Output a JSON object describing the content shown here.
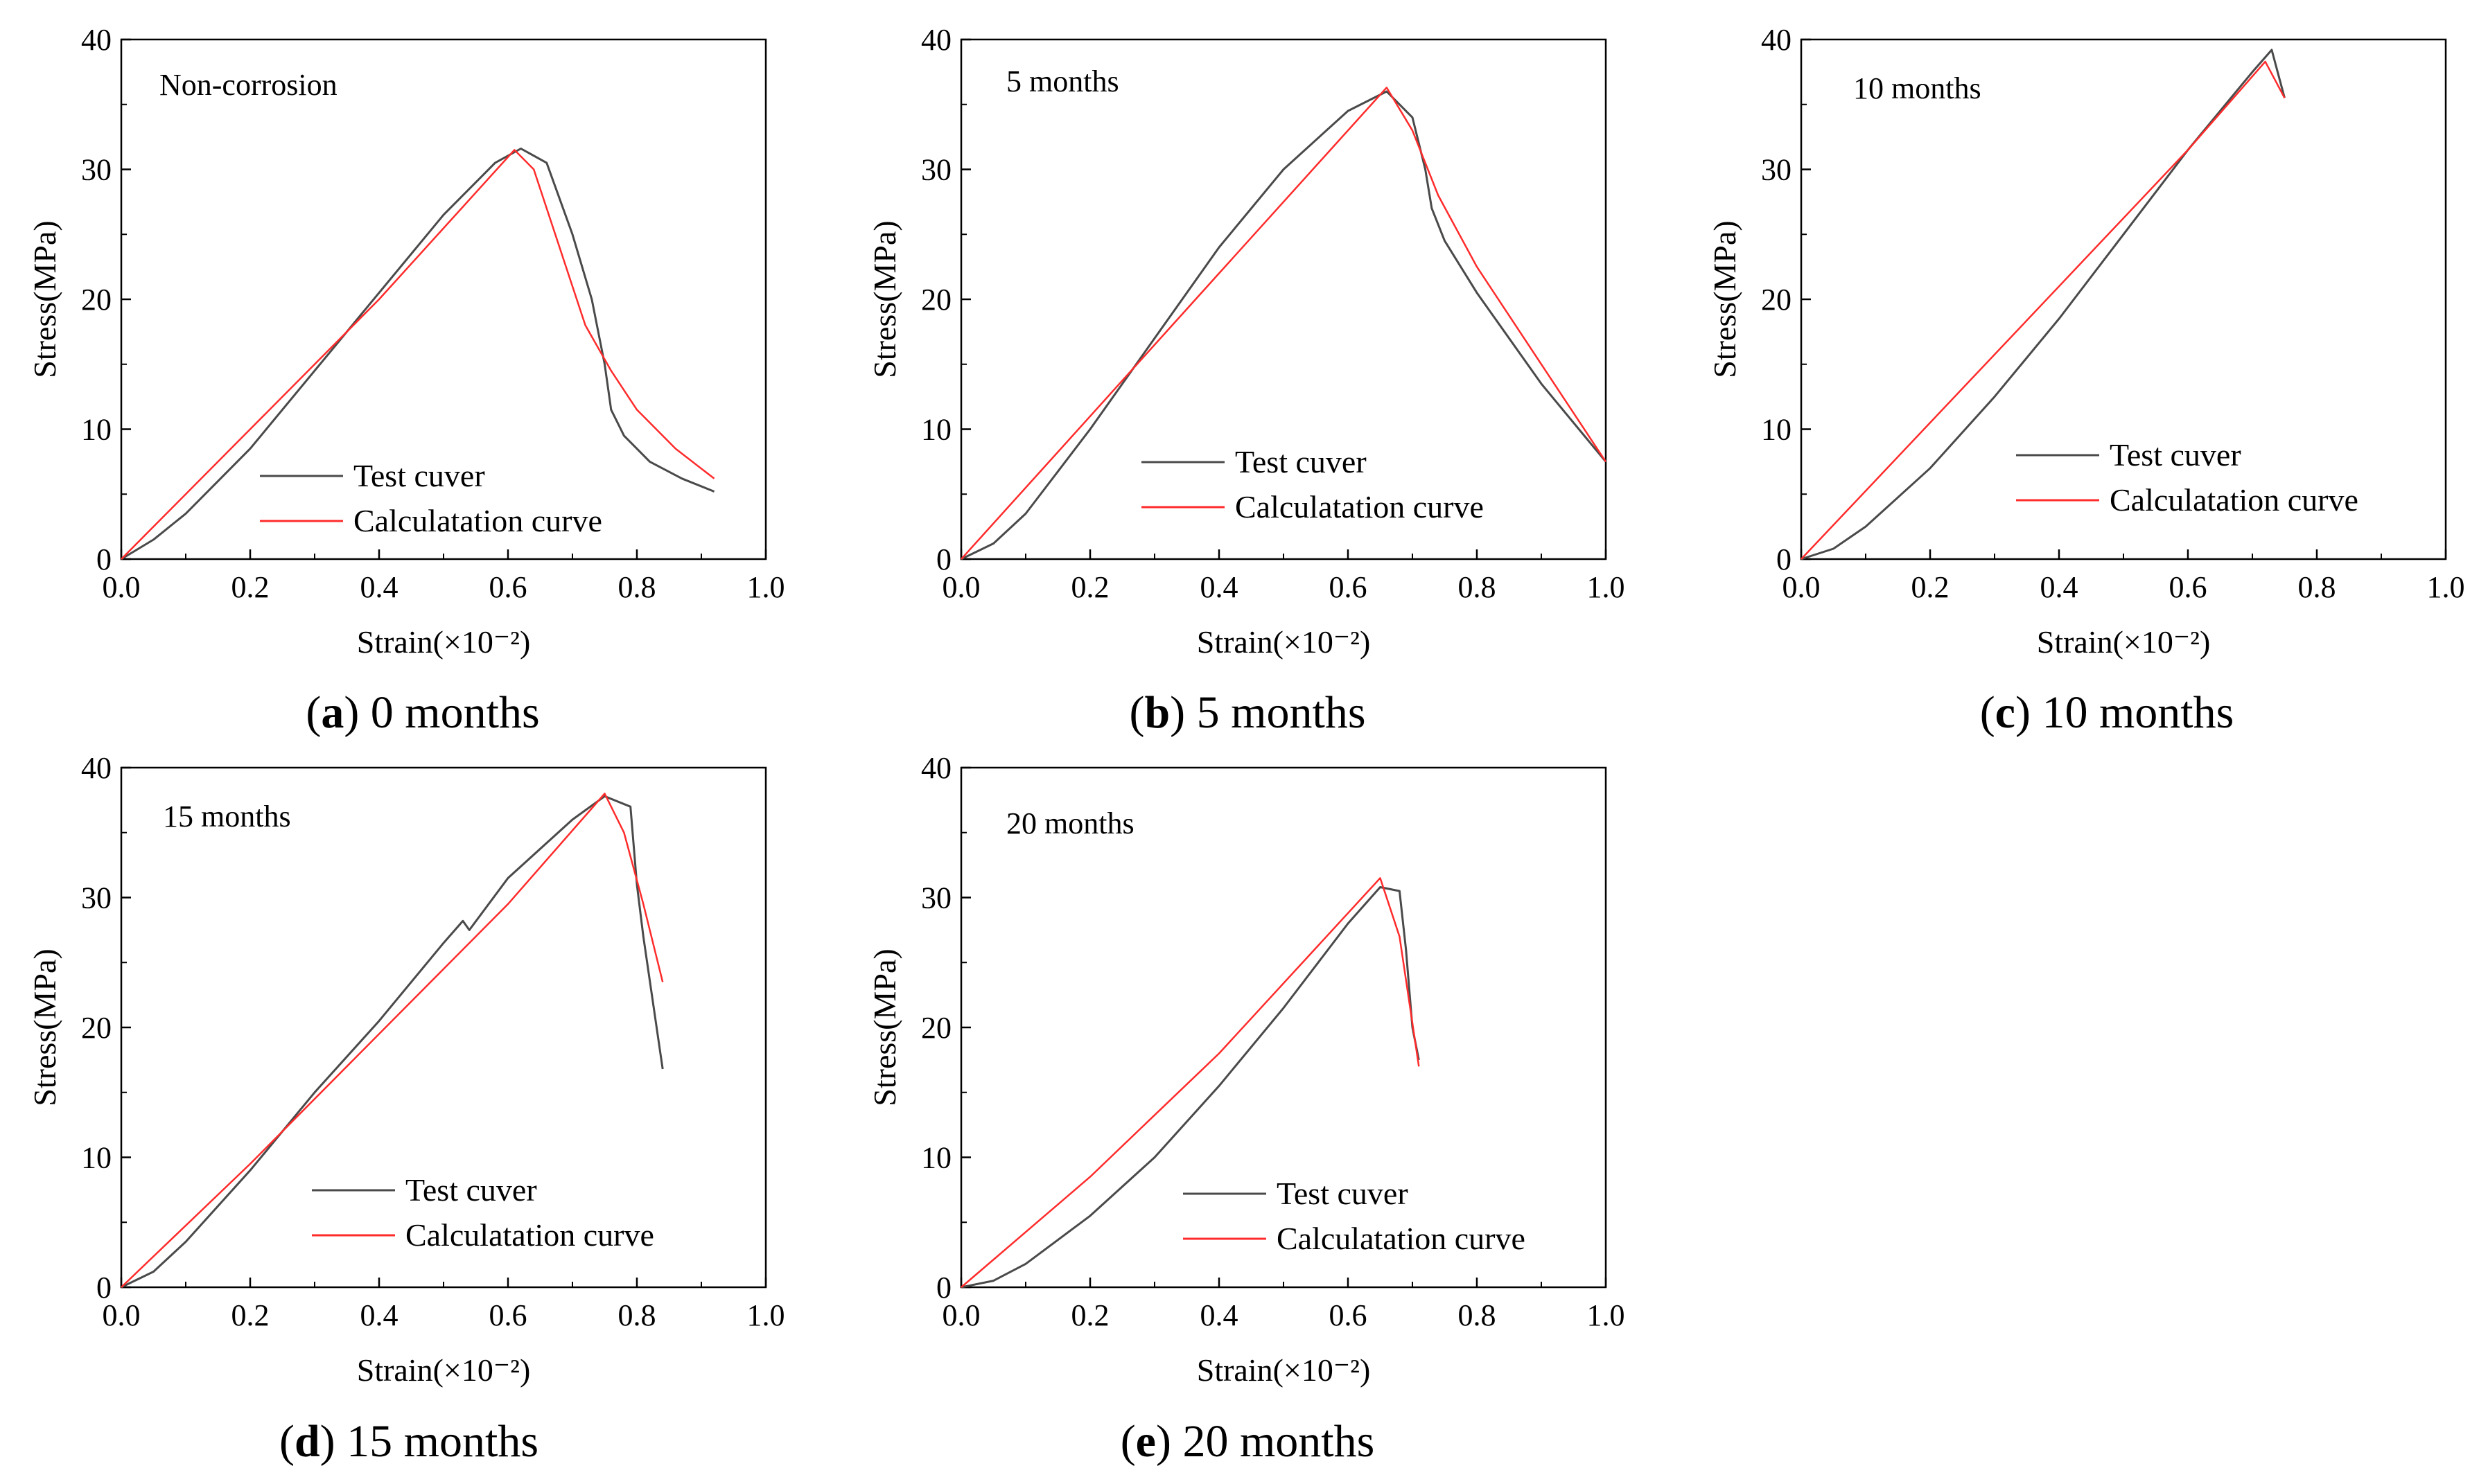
{
  "figure": {
    "panels": [
      {
        "id": "a",
        "caption": {
          "letter": "a",
          "text": " 0 months"
        },
        "annotation": "Non-corrosion",
        "legend": [
          "Test cuver",
          "Calculatation curve"
        ],
        "series_colors": {
          "test": "#4a4a4a",
          "calc": "#ff2b2b"
        }
      },
      {
        "id": "b",
        "caption": {
          "letter": "b",
          "text": " 5 months"
        },
        "annotation": "5 months",
        "legend": [
          "Test cuver",
          "Calculatation curve"
        ],
        "series_colors": {
          "test": "#4a4a4a",
          "calc": "#ff2b2b"
        }
      },
      {
        "id": "c",
        "caption": {
          "letter": "c",
          "text": " 10 months"
        },
        "annotation": "10 months",
        "legend": [
          "Test cuver",
          "Calculatation curve"
        ],
        "series_colors": {
          "test": "#4a4a4a",
          "calc": "#ff2b2b"
        }
      },
      {
        "id": "d",
        "caption": {
          "letter": "d",
          "text": " 15 months"
        },
        "annotation": "15 months",
        "legend": [
          "Test cuver",
          "Calculatation curve"
        ],
        "series_colors": {
          "test": "#4a4a4a",
          "calc": "#ff2b2b"
        }
      },
      {
        "id": "e",
        "caption": {
          "letter": "e",
          "text": " 20 months"
        },
        "annotation": "20 months",
        "legend": [
          "Test cuver",
          "Calculatation curve"
        ],
        "series_colors": {
          "test": "#4a4a4a",
          "calc": "#ff2b2b"
        }
      }
    ]
  },
  "chart_data": [
    {
      "type": "line",
      "title": "Non-corrosion",
      "xlabel": "Strain(×10⁻²)",
      "ylabel": "Stress(MPa)",
      "xlim": [
        0.0,
        1.0
      ],
      "ylim": [
        0,
        40
      ],
      "xticks": [
        "0.0",
        "0.2",
        "0.4",
        "0.6",
        "0.8",
        "1.0"
      ],
      "yticks": [
        "0",
        "10",
        "20",
        "30",
        "40"
      ],
      "series": [
        {
          "name": "Test cuver",
          "x": [
            0,
            0.05,
            0.1,
            0.2,
            0.3,
            0.4,
            0.5,
            0.58,
            0.62,
            0.66,
            0.7,
            0.73,
            0.75,
            0.76,
            0.78,
            0.82,
            0.87,
            0.92
          ],
          "y": [
            0,
            1.5,
            3.5,
            8.5,
            14.5,
            20.5,
            26.5,
            30.5,
            31.6,
            30.5,
            25,
            20,
            15,
            11.5,
            9.5,
            7.5,
            6.2,
            5.2
          ]
        },
        {
          "name": "Calculatation curve",
          "x": [
            0,
            0.2,
            0.4,
            0.61,
            0.64,
            0.68,
            0.72,
            0.76,
            0.8,
            0.86,
            0.92
          ],
          "y": [
            0,
            10,
            20,
            31.5,
            30,
            24,
            18,
            14.5,
            11.5,
            8.5,
            6.2
          ]
        }
      ]
    },
    {
      "type": "line",
      "title": "5 months",
      "xlabel": "Strain(×10⁻²)",
      "ylabel": "Stress(MPa)",
      "xlim": [
        0.0,
        1.0
      ],
      "ylim": [
        0,
        40
      ],
      "xticks": [
        "0.0",
        "0.2",
        "0.4",
        "0.6",
        "0.8",
        "1.0"
      ],
      "yticks": [
        "0",
        "10",
        "20",
        "30",
        "40"
      ],
      "series": [
        {
          "name": "Test cuver",
          "x": [
            0,
            0.05,
            0.1,
            0.2,
            0.3,
            0.4,
            0.5,
            0.6,
            0.66,
            0.7,
            0.72,
            0.73,
            0.75,
            0.8,
            0.9,
            1.0
          ],
          "y": [
            0,
            1.2,
            3.5,
            10,
            17,
            24,
            30,
            34.5,
            36,
            34,
            30,
            27,
            24.5,
            20.5,
            13.5,
            7.5
          ]
        },
        {
          "name": "Calculatation curve",
          "x": [
            0,
            0.2,
            0.4,
            0.66,
            0.7,
            0.74,
            0.8,
            0.9,
            1.0
          ],
          "y": [
            0,
            11,
            22,
            36.3,
            33,
            28,
            22.5,
            15,
            7.5
          ]
        }
      ]
    },
    {
      "type": "line",
      "title": "10 months",
      "xlabel": "Strain(×10⁻²)",
      "ylabel": "Stress(MPa)",
      "xlim": [
        0.0,
        1.0
      ],
      "ylim": [
        0,
        40
      ],
      "xticks": [
        "0.0",
        "0.2",
        "0.4",
        "0.6",
        "0.8",
        "1.0"
      ],
      "yticks": [
        "0",
        "10",
        "20",
        "30",
        "40"
      ],
      "series": [
        {
          "name": "Test cuver",
          "x": [
            0,
            0.05,
            0.1,
            0.2,
            0.3,
            0.4,
            0.5,
            0.6,
            0.7,
            0.73,
            0.75
          ],
          "y": [
            0,
            0.8,
            2.5,
            7,
            12.5,
            18.5,
            25,
            31.5,
            37.5,
            39.2,
            35.5
          ]
        },
        {
          "name": "Calculatation curve",
          "x": [
            0,
            0.2,
            0.4,
            0.6,
            0.72,
            0.75
          ],
          "y": [
            0,
            10.5,
            21,
            31.5,
            38.3,
            35.5
          ]
        }
      ]
    },
    {
      "type": "line",
      "title": "15 months",
      "xlabel": "Strain(×10⁻²)",
      "ylabel": "Stress(MPa)",
      "xlim": [
        0.0,
        1.0
      ],
      "ylim": [
        0,
        40
      ],
      "xticks": [
        "0.0",
        "0.2",
        "0.4",
        "0.6",
        "0.8",
        "1.0"
      ],
      "yticks": [
        "0",
        "10",
        "20",
        "30",
        "40"
      ],
      "series": [
        {
          "name": "Test cuver",
          "x": [
            0,
            0.05,
            0.1,
            0.2,
            0.3,
            0.4,
            0.5,
            0.53,
            0.54,
            0.6,
            0.7,
            0.75,
            0.79,
            0.8,
            0.81,
            0.84
          ],
          "y": [
            0,
            1.2,
            3.5,
            9,
            15,
            20.5,
            26.5,
            28.2,
            27.5,
            31.5,
            36,
            37.8,
            37,
            31,
            27,
            16.8
          ]
        },
        {
          "name": "Calculatation curve",
          "x": [
            0,
            0.2,
            0.4,
            0.6,
            0.75,
            0.78,
            0.81,
            0.84
          ],
          "y": [
            0,
            9.5,
            19.5,
            29.5,
            38,
            35,
            29.5,
            23.5
          ]
        }
      ]
    },
    {
      "type": "line",
      "title": "20 months",
      "xlabel": "Strain(×10⁻²)",
      "ylabel": "Stress(MPa)",
      "xlim": [
        0.0,
        1.0
      ],
      "ylim": [
        0,
        40
      ],
      "xticks": [
        "0.0",
        "0.2",
        "0.4",
        "0.6",
        "0.8",
        "1.0"
      ],
      "yticks": [
        "0",
        "10",
        "20",
        "30",
        "40"
      ],
      "series": [
        {
          "name": "Test cuver",
          "x": [
            0,
            0.05,
            0.1,
            0.2,
            0.3,
            0.4,
            0.5,
            0.6,
            0.65,
            0.68,
            0.69,
            0.7,
            0.71
          ],
          "y": [
            0,
            0.5,
            1.8,
            5.5,
            10,
            15.5,
            21.5,
            28,
            30.8,
            30.5,
            26,
            20,
            17.5
          ]
        },
        {
          "name": "Calculatation curve",
          "x": [
            0,
            0.2,
            0.4,
            0.65,
            0.68,
            0.71
          ],
          "y": [
            0,
            8.5,
            18,
            31.5,
            27,
            17
          ]
        }
      ]
    }
  ]
}
